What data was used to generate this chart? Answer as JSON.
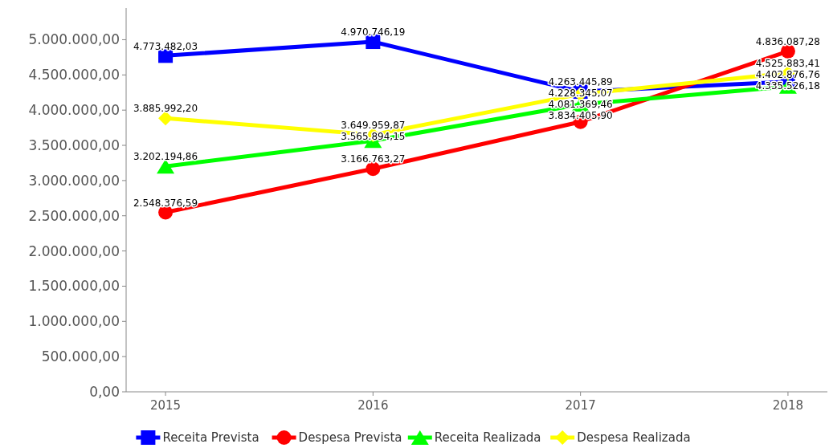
{
  "chart_data": {
    "type": "line",
    "categories": [
      "2015",
      "2016",
      "2017",
      "2018"
    ],
    "series": [
      {
        "name": "Receita Prevista",
        "color": "#0000ff",
        "marker": "square",
        "values": [
          4773482.03,
          4970746.19,
          4263445.89,
          4402876.76
        ],
        "value_labels": [
          "4.773.482,03",
          "4.970.746,19",
          "4.263.445,89",
          "4.402.876,76"
        ]
      },
      {
        "name": "Despesa Prevista",
        "color": "#ff0000",
        "marker": "circle",
        "values": [
          2548376.59,
          3166763.27,
          3834405.9,
          4836087.28
        ],
        "value_labels": [
          "2.548.376,59",
          "3.166.763,27",
          "3.834.405,90",
          "4.836.087,28"
        ]
      },
      {
        "name": "Receita Realizada",
        "color": "#00ff00",
        "marker": "triangle",
        "values": [
          3202194.86,
          3565894.15,
          4081369.46,
          4335526.18
        ],
        "value_labels": [
          "3.202.194,86",
          "3.565.894,15",
          "4.081.369,46",
          "4.335.526,18"
        ]
      },
      {
        "name": "Despesa Realizada",
        "color": "#ffff00",
        "marker": "diamond",
        "values": [
          3885992.2,
          3649959.87,
          4228345.07,
          4525883.41
        ],
        "value_labels": [
          "3.885.992,20",
          "3.649.959,87",
          "4.228.345,07",
          "4.525.883,41"
        ]
      }
    ],
    "ylim": [
      0,
      5450000
    ],
    "yticks": [
      {
        "value": 0,
        "label": "0,00"
      },
      {
        "value": 500000,
        "label": "500.000,00"
      },
      {
        "value": 1000000,
        "label": "1.000.000,00"
      },
      {
        "value": 1500000,
        "label": "1.500.000,00"
      },
      {
        "value": 2000000,
        "label": "2.000.000,00"
      },
      {
        "value": 2500000,
        "label": "2.500.000,00"
      },
      {
        "value": 3000000,
        "label": "3.000.000,00"
      },
      {
        "value": 3500000,
        "label": "3.500.000,00"
      },
      {
        "value": 4000000,
        "label": "4.000.000,00"
      },
      {
        "value": 4500000,
        "label": "4.500.000,00"
      },
      {
        "value": 5000000,
        "label": "5.000.000,00"
      }
    ],
    "legend": "bottom",
    "grid": false
  }
}
